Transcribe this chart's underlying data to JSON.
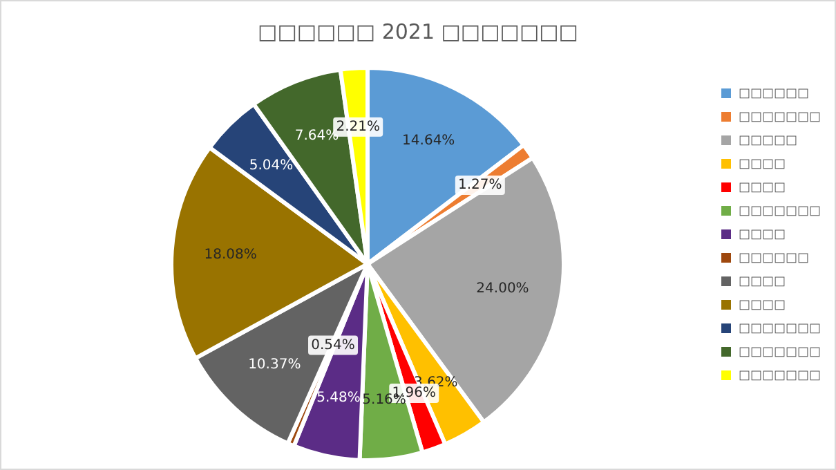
{
  "chart_data": {
    "type": "pie",
    "title": "□□□□□□ 2021 □□□□□□□",
    "categories": [
      "□□□□□□",
      "□□□□□□□",
      "□□□□□",
      "□□□□",
      "□□□□",
      "□□□□□□□",
      "□□□□",
      "□□□□□□",
      "□□□□",
      "□□□□",
      "□□□□□□□",
      "□□□□□□□",
      "□□□□□□□"
    ],
    "values": [
      14.64,
      1.27,
      24.0,
      3.62,
      1.96,
      5.16,
      5.48,
      0.54,
      10.37,
      18.08,
      5.04,
      7.64,
      2.21
    ],
    "colors": [
      "#5b9bd5",
      "#ed7d31",
      "#a5a5a5",
      "#ffc000",
      "#ff0000",
      "#70ad47",
      "#5b2c86",
      "#9e480e",
      "#636363",
      "#997300",
      "#264478",
      "#43682b",
      "#ffff00"
    ],
    "value_labels": [
      "14.64%",
      "1.27%",
      "24.00%",
      "3.62%",
      "1.96%",
      "5.16%",
      "5.48%",
      "0.54%",
      "10.37%",
      "18.08%",
      "5.04%",
      "7.64%",
      "2.21%"
    ],
    "legend": "right"
  }
}
